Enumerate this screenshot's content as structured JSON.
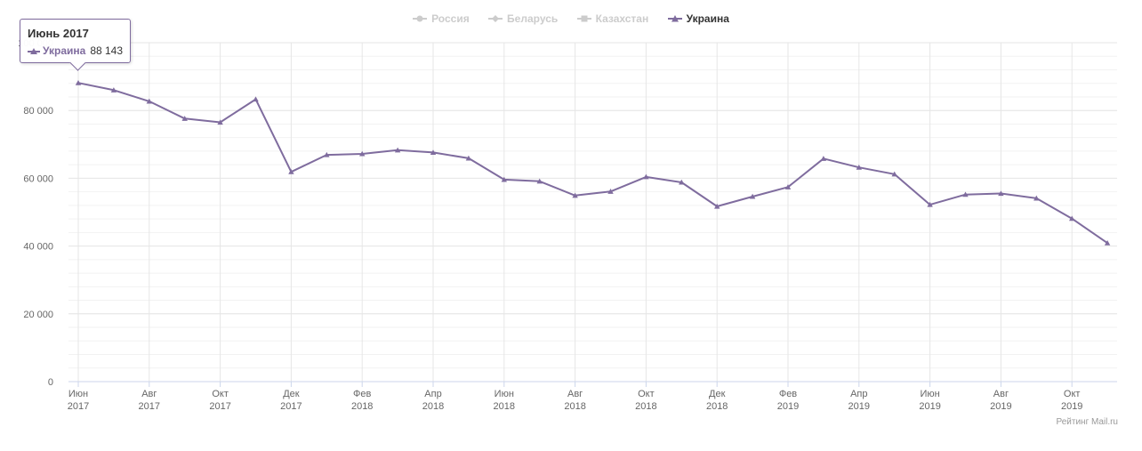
{
  "legend": [
    {
      "label": "Россия",
      "visible": false
    },
    {
      "label": "Беларусь",
      "visible": false
    },
    {
      "label": "Казахстан",
      "visible": false
    },
    {
      "label": "Украина",
      "visible": true
    }
  ],
  "tooltip": {
    "title": "Июнь 2017",
    "series": "Украина",
    "value": "88 143"
  },
  "credits": "Рейтинг Mail.ru",
  "colors": {
    "series": "#7f6c9e",
    "grid": "#e6e6e6",
    "hidden": "#cccccc"
  },
  "chart_data": {
    "type": "line",
    "x": [
      "Июн 2017",
      "Июл 2017",
      "Авг 2017",
      "Сен 2017",
      "Окт 2017",
      "Ноя 2017",
      "Дек 2017",
      "Янв 2018",
      "Фев 2018",
      "Мар 2018",
      "Апр 2018",
      "Май 2018",
      "Июн 2018",
      "Июл 2018",
      "Авг 2018",
      "Сен 2018",
      "Окт 2018",
      "Ноя 2018",
      "Дек 2018",
      "Янв 2019",
      "Фев 2019",
      "Мар 2019",
      "Апр 2019",
      "Май 2019",
      "Июн 2019",
      "Июл 2019",
      "Авг 2019",
      "Сен 2019",
      "Окт 2019",
      "Ноя 2019"
    ],
    "x_ticks": [
      {
        "index": 0,
        "line1": "Июн",
        "line2": "2017"
      },
      {
        "index": 2,
        "line1": "Авг",
        "line2": "2017"
      },
      {
        "index": 4,
        "line1": "Окт",
        "line2": "2017"
      },
      {
        "index": 6,
        "line1": "Дек",
        "line2": "2017"
      },
      {
        "index": 8,
        "line1": "Фев",
        "line2": "2018"
      },
      {
        "index": 10,
        "line1": "Апр",
        "line2": "2018"
      },
      {
        "index": 12,
        "line1": "Июн",
        "line2": "2018"
      },
      {
        "index": 14,
        "line1": "Авг",
        "line2": "2018"
      },
      {
        "index": 16,
        "line1": "Окт",
        "line2": "2018"
      },
      {
        "index": 18,
        "line1": "Дек",
        "line2": "2018"
      },
      {
        "index": 20,
        "line1": "Фев",
        "line2": "2019"
      },
      {
        "index": 22,
        "line1": "Апр",
        "line2": "2019"
      },
      {
        "index": 24,
        "line1": "Июн",
        "line2": "2019"
      },
      {
        "index": 26,
        "line1": "Авг",
        "line2": "2019"
      },
      {
        "index": 28,
        "line1": "Окт",
        "line2": "2019"
      }
    ],
    "series": [
      {
        "name": "Украина",
        "values": [
          88143,
          86000,
          82700,
          77600,
          76500,
          83300,
          61900,
          66900,
          67200,
          68300,
          67600,
          65900,
          59600,
          59100,
          54900,
          56100,
          60400,
          58800,
          51700,
          54600,
          57400,
          65800,
          63200,
          61200,
          52200,
          55200,
          55500,
          54100,
          48100,
          40900
        ]
      }
    ],
    "y_ticks": [
      {
        "value": 0,
        "label": "0"
      },
      {
        "value": 20000,
        "label": "20 000"
      },
      {
        "value": 40000,
        "label": "40 000"
      },
      {
        "value": 60000,
        "label": "60 000"
      },
      {
        "value": 80000,
        "label": "80 000"
      },
      {
        "value": 100000,
        "label": "100 000"
      }
    ],
    "ylim": [
      0,
      100000
    ],
    "grid": true,
    "legend_position": "top-center"
  }
}
